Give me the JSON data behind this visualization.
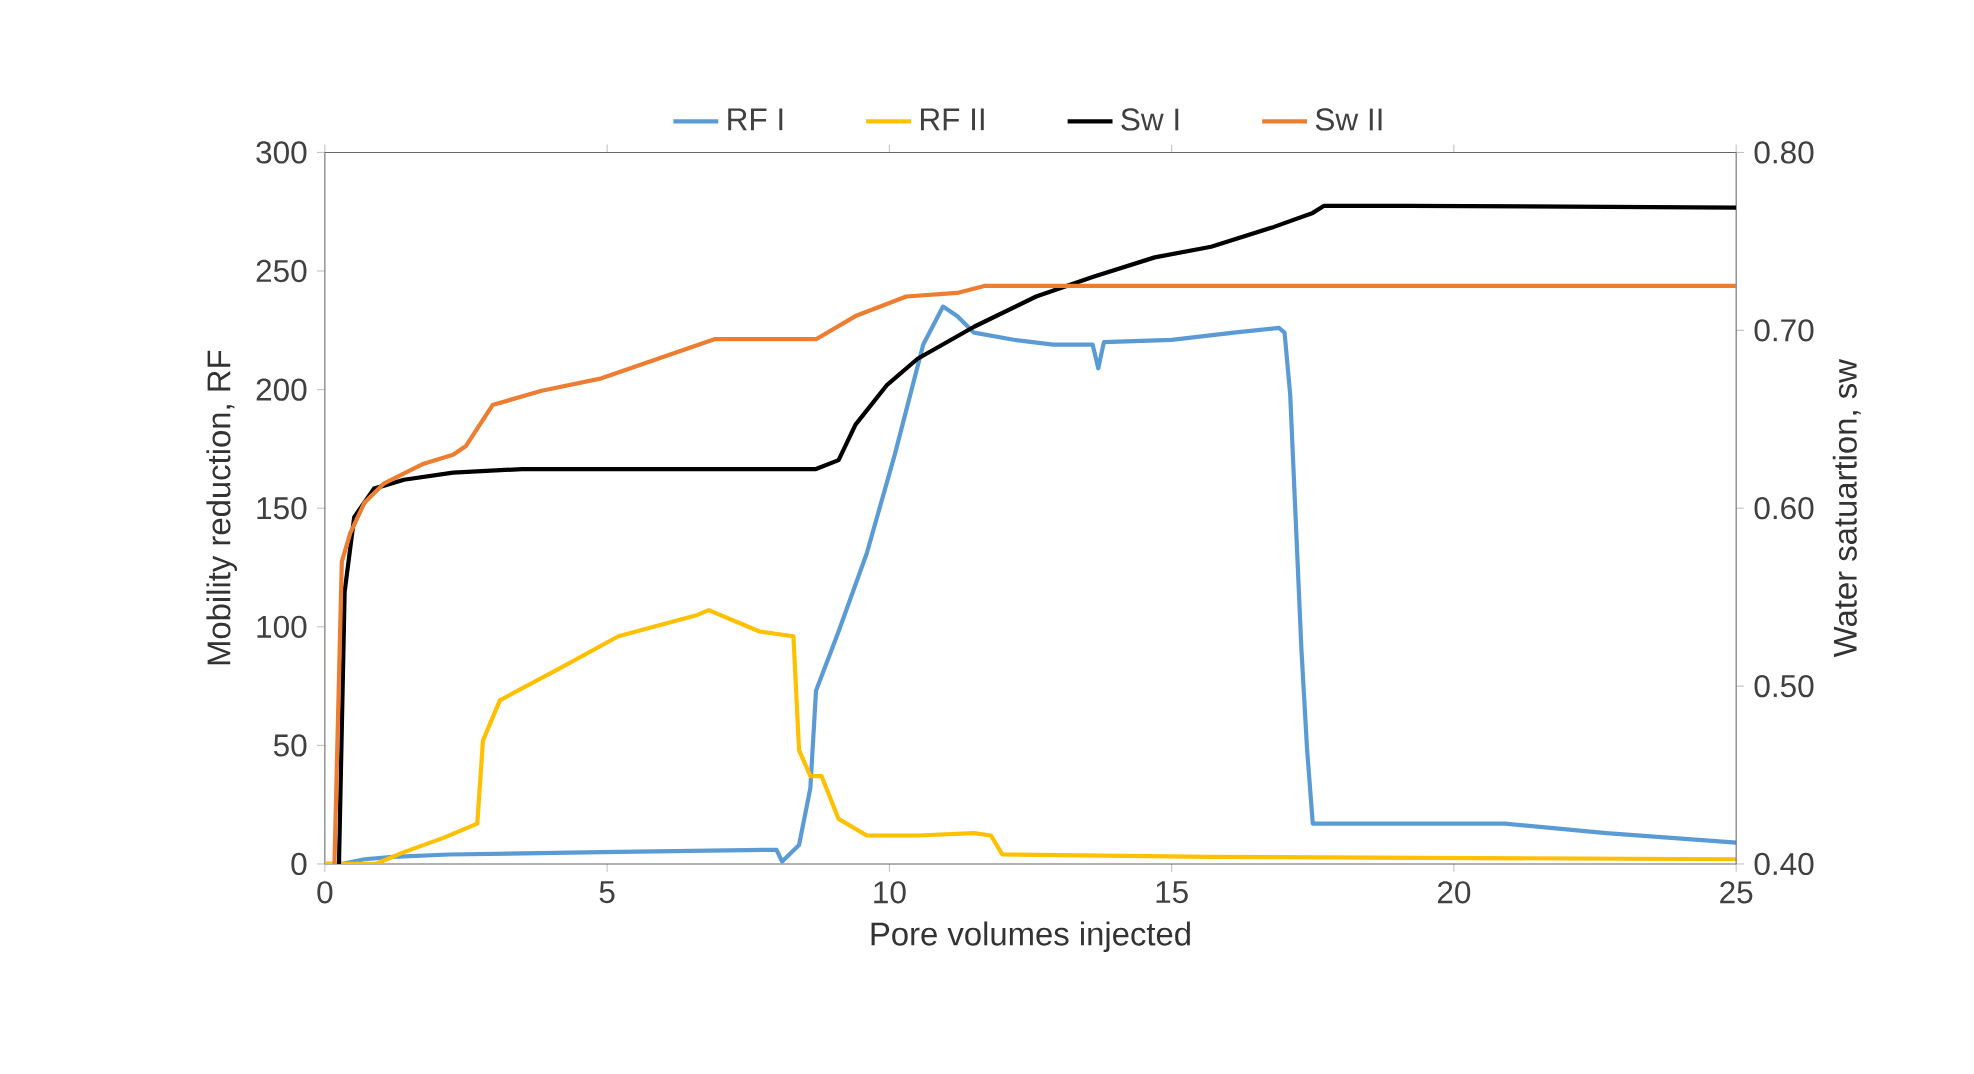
{
  "chart_data": {
    "type": "line",
    "xlabel": "Pore volumes injected",
    "ylabel": "Mobility reduction, RF",
    "y2label": "Water satuartion, sw",
    "xlim": [
      0,
      25
    ],
    "xticks": [
      0,
      5,
      10,
      15,
      20,
      25
    ],
    "ylim": [
      0,
      300
    ],
    "yticks": [
      0,
      50,
      100,
      150,
      200,
      250,
      300
    ],
    "y2lim": [
      0.4,
      0.8
    ],
    "y2ticks": [
      {
        "value": 0.4,
        "label": "0.40"
      },
      {
        "value": 0.5,
        "label": "0.50"
      },
      {
        "value": 0.6,
        "label": "0.60"
      },
      {
        "value": 0.7,
        "label": "0.70"
      },
      {
        "value": 0.8,
        "label": "0.80"
      }
    ],
    "legend": "top",
    "grid": false,
    "series": [
      {
        "name": "RF I",
        "color": "#5b9bd5",
        "x": [
          0,
          0.3,
          0.7,
          1.2,
          2.2,
          4.9,
          8.0,
          8.1,
          8.4,
          8.6,
          8.7,
          9.1,
          9.6,
          10.1,
          10.6,
          10.95,
          11.2,
          11.5,
          12.2,
          12.9,
          13.6,
          13.7,
          13.8,
          15.0,
          16.1,
          16.9,
          17.0,
          17.1,
          17.3,
          17.4,
          17.5,
          18.5,
          20.9,
          22.7,
          25
        ],
        "values": [
          0,
          0,
          2,
          3,
          4,
          5,
          6,
          1,
          8,
          32,
          73,
          98,
          131,
          173,
          219,
          235,
          231,
          224,
          221,
          219,
          219,
          209,
          220,
          221,
          224,
          226,
          224,
          198,
          90,
          48,
          17,
          17,
          17,
          13,
          9
        ]
      },
      {
        "name": "RF II",
        "color": "#ffc000",
        "x": [
          0,
          0.9,
          1.4,
          2.1,
          2.5,
          2.7,
          2.8,
          3.1,
          4.2,
          5.2,
          6.6,
          6.8,
          7.3,
          7.7,
          8.3,
          8.4,
          8.6,
          8.8,
          9.1,
          9.6,
          10.5,
          11.5,
          11.8,
          12.0,
          15.7,
          25
        ],
        "values": [
          0,
          0,
          5,
          11,
          15,
          17,
          52,
          69,
          83,
          96,
          105,
          107,
          102,
          98,
          96,
          48,
          37,
          37,
          19,
          12,
          12,
          13,
          12,
          4,
          3,
          2
        ]
      },
      {
        "name": "Sw I",
        "color": "#000000",
        "axis": "y2",
        "x": [
          0.25,
          0.35,
          0.52,
          0.87,
          1.4,
          2.27,
          3.5,
          8.7,
          9.1,
          9.4,
          9.95,
          10.5,
          11.5,
          12.6,
          13.6,
          14.7,
          15.7,
          16.8,
          17.5,
          17.7,
          19.2,
          25
        ],
        "values": [
          0.4,
          0.553,
          0.595,
          0.611,
          0.616,
          0.62,
          0.622,
          0.622,
          0.627,
          0.647,
          0.669,
          0.684,
          0.702,
          0.719,
          0.73,
          0.741,
          0.747,
          0.758,
          0.766,
          0.77,
          0.77,
          0.769
        ]
      },
      {
        "name": "Sw II",
        "color": "#ed7d31",
        "axis": "y2",
        "x": [
          0.17,
          0.3,
          0.45,
          0.7,
          1.05,
          1.75,
          2.27,
          2.5,
          2.97,
          3.84,
          4.9,
          5.9,
          6.9,
          8.7,
          9.4,
          10.3,
          11.2,
          11.7,
          25
        ],
        "values": [
          0.4,
          0.57,
          0.586,
          0.603,
          0.614,
          0.625,
          0.63,
          0.635,
          0.658,
          0.666,
          0.673,
          0.684,
          0.695,
          0.695,
          0.708,
          0.719,
          0.721,
          0.725,
          0.725
        ]
      }
    ]
  }
}
